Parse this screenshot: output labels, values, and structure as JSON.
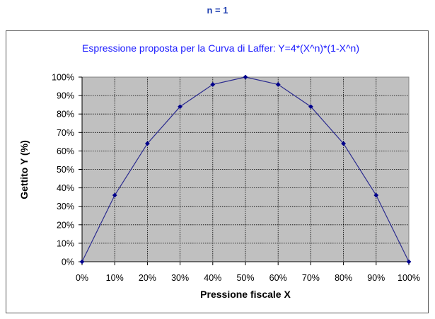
{
  "header": {
    "title": "n = 1"
  },
  "chart_data": {
    "type": "line",
    "title": "Espressione proposta  per la Curva di Laffer: Y=4*(X^n)*(1-X^n)",
    "xlabel": "Pressione fiscale X",
    "ylabel": "Gettito Y (%)",
    "categories": [
      "0%",
      "10%",
      "20%",
      "30%",
      "40%",
      "50%",
      "60%",
      "70%",
      "80%",
      "90%",
      "100%"
    ],
    "x": [
      0,
      10,
      20,
      30,
      40,
      50,
      60,
      70,
      80,
      90,
      100
    ],
    "series": [
      {
        "values": [
          0,
          36,
          64,
          84,
          96,
          100,
          96,
          84,
          64,
          36,
          0
        ]
      }
    ],
    "yticks": [
      "0%",
      "10%",
      "20%",
      "30%",
      "40%",
      "50%",
      "60%",
      "70%",
      "80%",
      "90%",
      "100%"
    ],
    "ylim": [
      0,
      100
    ],
    "xlim": [
      0,
      100
    ],
    "grid": true,
    "legend": "none",
    "colors": {
      "line": "#2b2b8f",
      "marker": "#00008b",
      "plot_background": "#c0c0c0",
      "title": "#1a1aff",
      "header": "#1f3fb0"
    }
  }
}
